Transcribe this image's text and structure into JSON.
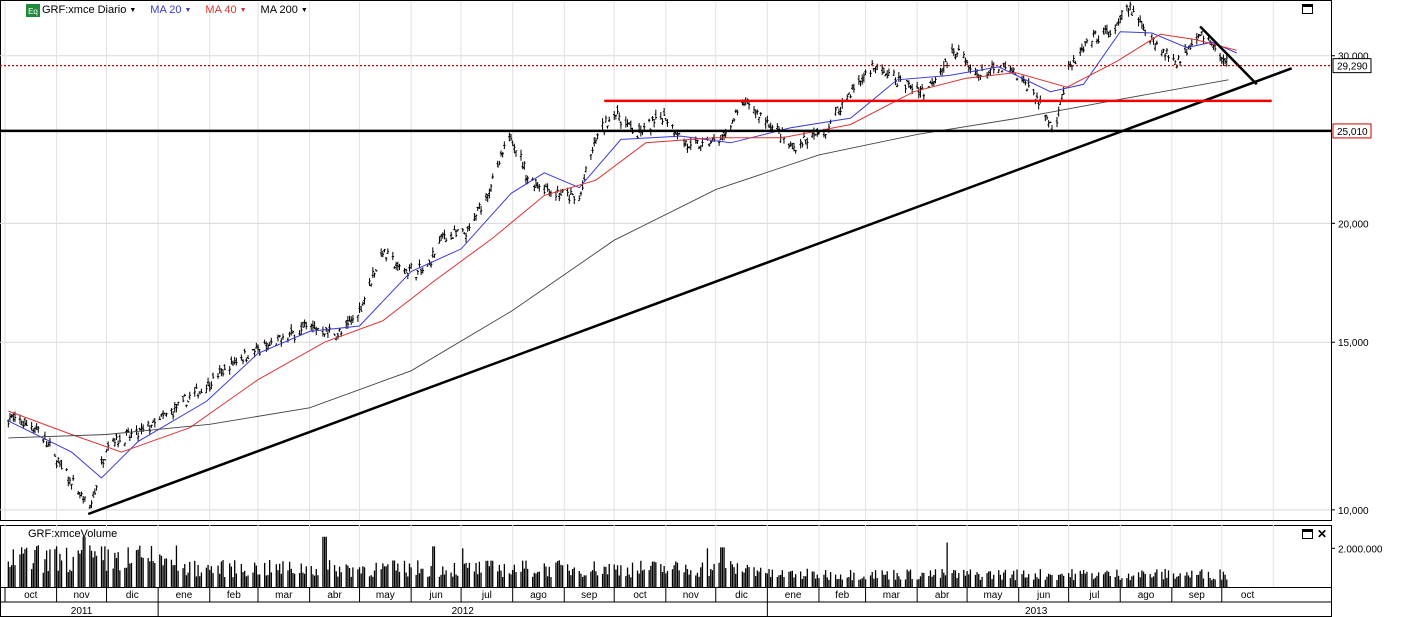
{
  "toolbar": {
    "symbol": "GRF:xmce Diario",
    "ma20": "MA 20",
    "ma40": "MA 40",
    "ma200": "MA 200"
  },
  "volume_panel": {
    "label": "GRF:xmceVolume",
    "axis_label": "2.000.000"
  },
  "colors": {
    "ma20": "#3a3ad8",
    "ma40": "#dd3333",
    "ma200": "#444444",
    "resistance": "#ee0000",
    "support": "#000000",
    "last_price_label_border": "#000000",
    "level_label_border": "#cc0000"
  },
  "chart_data": {
    "type": "candlestick",
    "title": "GRF:xmce Diario",
    "y_axis": {
      "scale": "log",
      "ticks": [
        "10,000",
        "15,000",
        "20,000",
        "30,000"
      ],
      "tick_values": [
        10000,
        15000,
        20000,
        30000
      ],
      "range": [
        9900,
        34000
      ],
      "position": "right"
    },
    "x_axis": {
      "months": [
        "oct",
        "nov",
        "dic",
        "ene",
        "feb",
        "mar",
        "abr",
        "may",
        "jun",
        "jul",
        "ago",
        "sep",
        "oct",
        "nov",
        "dic",
        "ene",
        "feb",
        "mar",
        "abr",
        "may",
        "jun",
        "jul",
        "ago",
        "sep",
        "oct"
      ],
      "years": [
        "2011",
        "2012",
        "2013"
      ],
      "range": [
        "2011-10-01",
        "2013-10-31"
      ]
    },
    "price_labels": [
      {
        "text": "29,290",
        "value": 29290,
        "kind": "last"
      },
      {
        "text": "25,010",
        "value": 25010,
        "kind": "level"
      }
    ],
    "price_series": {
      "name": "GRF:xmce",
      "points": [
        [
          "2011-10-03",
          12500
        ],
        [
          "2011-10-20",
          12200
        ],
        [
          "2011-11-05",
          11000
        ],
        [
          "2011-11-21",
          10000
        ],
        [
          "2011-12-02",
          11800
        ],
        [
          "2011-12-20",
          12000
        ],
        [
          "2012-01-10",
          12700
        ],
        [
          "2012-01-30",
          13500
        ],
        [
          "2012-02-20",
          14500
        ],
        [
          "2012-03-10",
          14900
        ],
        [
          "2012-03-30",
          15600
        ],
        [
          "2012-04-20",
          15300
        ],
        [
          "2012-05-01",
          16200
        ],
        [
          "2012-05-15",
          18700
        ],
        [
          "2012-05-25",
          17900
        ],
        [
          "2012-06-10",
          17800
        ],
        [
          "2012-06-20",
          19400
        ],
        [
          "2012-07-05",
          19500
        ],
        [
          "2012-07-20",
          22100
        ],
        [
          "2012-07-31",
          24800
        ],
        [
          "2012-08-10",
          22300
        ],
        [
          "2012-08-28",
          21500
        ],
        [
          "2012-09-10",
          21200
        ],
        [
          "2012-09-20",
          24500
        ],
        [
          "2012-10-01",
          26200
        ],
        [
          "2012-10-15",
          24800
        ],
        [
          "2012-10-31",
          26000
        ],
        [
          "2012-11-15",
          24000
        ],
        [
          "2012-12-05",
          24500
        ],
        [
          "2012-12-18",
          26800
        ],
        [
          "2013-01-05",
          25200
        ],
        [
          "2013-01-15",
          24000
        ],
        [
          "2013-02-05",
          25000
        ],
        [
          "2013-02-20",
          27500
        ],
        [
          "2013-03-05",
          29200
        ],
        [
          "2013-03-20",
          28300
        ],
        [
          "2013-04-05",
          27500
        ],
        [
          "2013-04-25",
          30500
        ],
        [
          "2013-05-05",
          28600
        ],
        [
          "2013-05-25",
          29100
        ],
        [
          "2013-06-10",
          27500
        ],
        [
          "2013-06-22",
          25000
        ],
        [
          "2013-07-01",
          29000
        ],
        [
          "2013-07-15",
          31200
        ],
        [
          "2013-07-30",
          32000
        ],
        [
          "2013-08-05",
          33800
        ],
        [
          "2013-08-25",
          30500
        ],
        [
          "2013-09-05",
          29500
        ],
        [
          "2013-09-12",
          31000
        ],
        [
          "2013-09-18",
          31800
        ],
        [
          "2013-10-05",
          29290
        ]
      ]
    },
    "series": [
      {
        "name": "MA 20",
        "points": [
          [
            "2011-10-03",
            12400
          ],
          [
            "2011-11-10",
            11500
          ],
          [
            "2011-11-28",
            10800
          ],
          [
            "2011-12-20",
            11800
          ],
          [
            "2012-01-30",
            13000
          ],
          [
            "2012-03-01",
            14600
          ],
          [
            "2012-04-01",
            15400
          ],
          [
            "2012-05-01",
            15600
          ],
          [
            "2012-06-01",
            17800
          ],
          [
            "2012-07-01",
            18800
          ],
          [
            "2012-07-31",
            21500
          ],
          [
            "2012-08-20",
            22600
          ],
          [
            "2012-09-10",
            21800
          ],
          [
            "2012-10-05",
            24500
          ],
          [
            "2012-11-10",
            24700
          ],
          [
            "2012-12-10",
            24300
          ],
          [
            "2013-01-15",
            25200
          ],
          [
            "2013-02-20",
            25800
          ],
          [
            "2013-03-20",
            28300
          ],
          [
            "2013-04-20",
            28600
          ],
          [
            "2013-05-20",
            29200
          ],
          [
            "2013-06-20",
            27500
          ],
          [
            "2013-07-10",
            28000
          ],
          [
            "2013-08-01",
            31800
          ],
          [
            "2013-08-20",
            31700
          ],
          [
            "2013-09-10",
            30600
          ],
          [
            "2013-09-25",
            31000
          ],
          [
            "2013-10-10",
            30200
          ]
        ]
      },
      {
        "name": "MA 40",
        "points": [
          [
            "2011-10-03",
            12700
          ],
          [
            "2011-11-10",
            12000
          ],
          [
            "2011-12-10",
            11500
          ],
          [
            "2012-01-20",
            12200
          ],
          [
            "2012-03-01",
            13700
          ],
          [
            "2012-04-10",
            15000
          ],
          [
            "2012-05-15",
            15800
          ],
          [
            "2012-06-15",
            17400
          ],
          [
            "2012-07-20",
            19300
          ],
          [
            "2012-08-20",
            21400
          ],
          [
            "2012-09-20",
            22200
          ],
          [
            "2012-10-20",
            24300
          ],
          [
            "2012-11-30",
            24600
          ],
          [
            "2013-01-10",
            24600
          ],
          [
            "2013-02-20",
            25400
          ],
          [
            "2013-03-30",
            27500
          ],
          [
            "2013-04-30",
            28400
          ],
          [
            "2013-05-30",
            28800
          ],
          [
            "2013-06-30",
            27800
          ],
          [
            "2013-07-30",
            29600
          ],
          [
            "2013-08-25",
            31600
          ],
          [
            "2013-09-15",
            31200
          ],
          [
            "2013-10-10",
            30400
          ]
        ]
      },
      {
        "name": "MA 200",
        "points": [
          [
            "2011-10-03",
            11900
          ],
          [
            "2011-12-01",
            12000
          ],
          [
            "2012-02-01",
            12300
          ],
          [
            "2012-04-01",
            12800
          ],
          [
            "2012-06-01",
            14000
          ],
          [
            "2012-08-01",
            16200
          ],
          [
            "2012-10-01",
            19200
          ],
          [
            "2012-12-01",
            21700
          ],
          [
            "2013-02-01",
            23600
          ],
          [
            "2013-04-01",
            24800
          ],
          [
            "2013-06-01",
            25800
          ],
          [
            "2013-08-01",
            27000
          ],
          [
            "2013-10-05",
            28300
          ]
        ]
      }
    ],
    "trendlines": [
      {
        "kind": "support_rising",
        "color": "#000000",
        "from": [
          "2011-11-20",
          9900
        ],
        "to": [
          "2013-11-12",
          29100
        ]
      },
      {
        "kind": "horizontal",
        "color": "#000000",
        "value": 25010
      },
      {
        "kind": "resistance",
        "color": "#ee0000",
        "from": [
          "2012-09-25",
          26900
        ],
        "to": [
          "2013-10-31",
          26900
        ]
      },
      {
        "kind": "falling",
        "color": "#000000",
        "from": [
          "2013-09-18",
          32200
        ],
        "to": [
          "2013-10-22",
          28000
        ]
      }
    ],
    "volume": {
      "axis_tick": "2.000.000",
      "axis_tick_value": 2000000,
      "typical_range": [
        300000,
        2600000
      ],
      "spikes": [
        {
          "date": "2011-11-18",
          "value": 2600000
        },
        {
          "date": "2012-04-10",
          "value": 2600000
        },
        {
          "date": "2012-06-15",
          "value": 2100000
        },
        {
          "date": "2012-07-01",
          "value": 2000000
        },
        {
          "date": "2012-11-25",
          "value": 2000000
        },
        {
          "date": "2012-12-05",
          "value": 2050000
        },
        {
          "date": "2013-04-20",
          "value": 2300000
        }
      ]
    }
  }
}
